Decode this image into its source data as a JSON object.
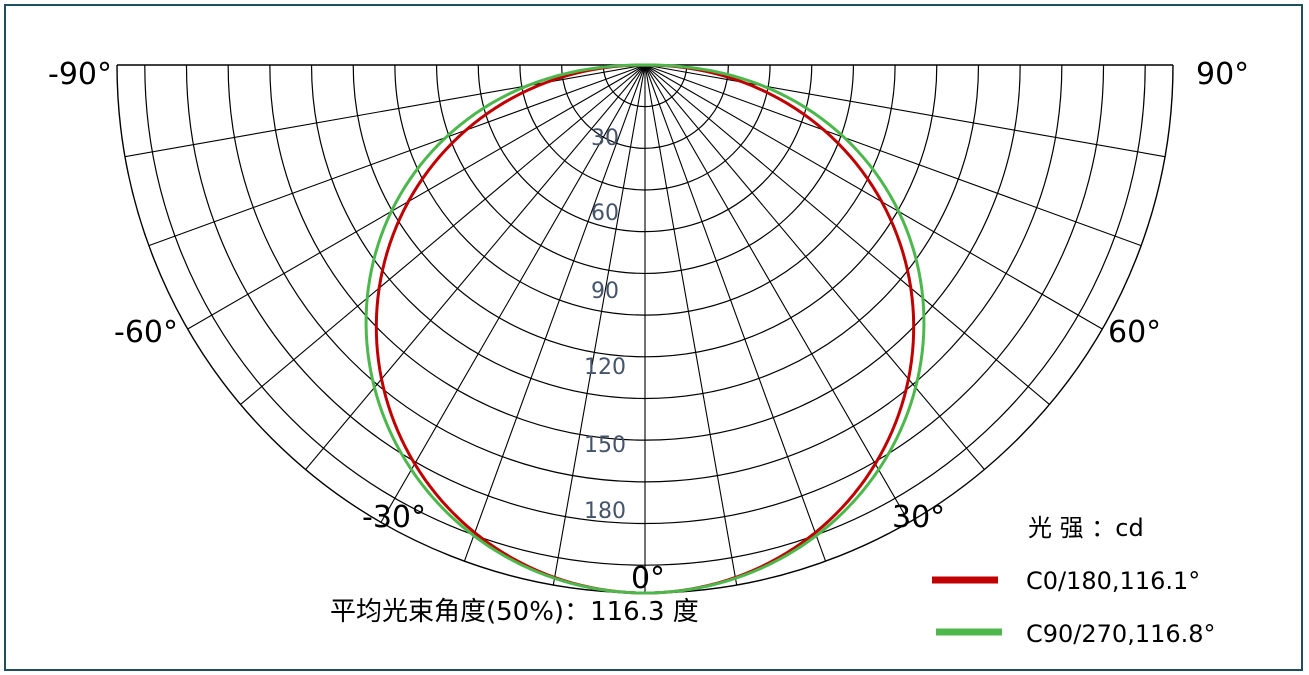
{
  "chart_data": {
    "type": "polar",
    "angle_labels": [
      "-90°",
      "90°",
      "-60°",
      "60°",
      "-30°",
      "30°",
      "0°"
    ],
    "intensity_ticks": [
      "30",
      "60",
      "90",
      "120",
      "150",
      "180"
    ],
    "intensity_unit_label": "光 强 ：cd",
    "caption": "平均光束角度(50%)：116.3 度",
    "series": [
      {
        "name": "C0/180,116.1°",
        "color": "#c00000",
        "max_value": 190,
        "exponent": 0.95
      },
      {
        "name": "C90/270,116.8°",
        "color": "#4cb84c",
        "max_value": 190,
        "exponent": 0.85
      }
    ],
    "rmax": 190,
    "angular_grid_step_deg": 10,
    "radial_grid_step": 15
  }
}
